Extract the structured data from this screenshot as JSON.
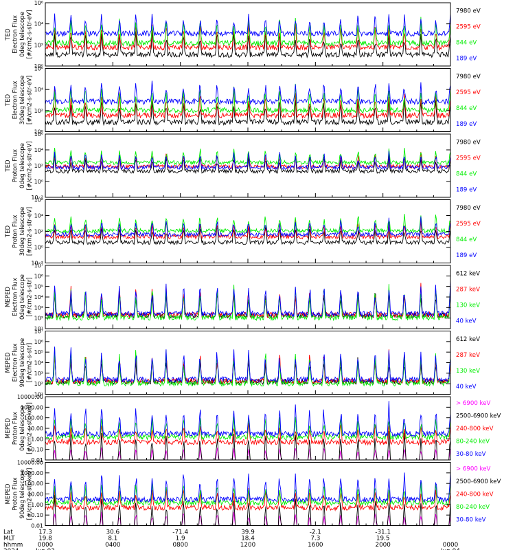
{
  "colors": {
    "black": "#000000",
    "blue": "#0000ff",
    "green": "#00ee00",
    "red": "#ff0000",
    "magenta": "#ff00ff"
  },
  "chart_data": [
    {
      "type": "line",
      "ylabel": [
        "TED",
        "Electron Flux",
        "0deg telescope",
        "[#/cm2-s-str-eV]"
      ],
      "scale": "log",
      "ylim": [
        1,
        1000000
      ],
      "yticks": [
        {
          "v": 1,
          "t": "10⁰"
        },
        {
          "v": 100,
          "t": "10²"
        },
        {
          "v": 10000,
          "t": "10⁴"
        },
        {
          "v": 1000000,
          "t": "10⁶"
        }
      ],
      "series": [
        {
          "name": "7980 eV",
          "color": "black",
          "base": 12,
          "peak": 4000
        },
        {
          "name": "2595 eV",
          "color": "red",
          "base": 60,
          "peak": 20000
        },
        {
          "name": "844 eV",
          "color": "green",
          "base": 150,
          "peak": 50000
        },
        {
          "name": "189 eV",
          "color": "blue",
          "base": 1200,
          "peak": 120000
        }
      ]
    },
    {
      "type": "line",
      "ylabel": [
        "TED",
        "Electron Flux",
        "30deg telescope",
        "[#/cm2-s-str-eV]"
      ],
      "scale": "log",
      "ylim": [
        1,
        1000000
      ],
      "yticks": [
        {
          "v": 1,
          "t": "10⁰"
        },
        {
          "v": 100,
          "t": "10²"
        },
        {
          "v": 10000,
          "t": "10⁴"
        },
        {
          "v": 1000000,
          "t": "10⁶"
        }
      ],
      "series": [
        {
          "name": "7980 eV",
          "color": "black",
          "base": 8,
          "peak": 3000
        },
        {
          "name": "2595 eV",
          "color": "red",
          "base": 35,
          "peak": 15000
        },
        {
          "name": "844 eV",
          "color": "green",
          "base": 110,
          "peak": 40000
        },
        {
          "name": "189 eV",
          "color": "blue",
          "base": 700,
          "peak": 100000
        }
      ]
    },
    {
      "type": "line",
      "ylabel": [
        "TED",
        "Proton Flux",
        "0deg telescope",
        "[#/cm2-s-str-eV]"
      ],
      "scale": "log",
      "ylim": [
        0.01,
        1000000
      ],
      "yticks": [
        {
          "v": 0.01,
          "t": "10⁻²"
        },
        {
          "v": 1,
          "t": "10⁰"
        },
        {
          "v": 100,
          "t": "10²"
        },
        {
          "v": 10000,
          "t": "10⁴"
        },
        {
          "v": 1000000,
          "t": "10⁶"
        }
      ],
      "series": [
        {
          "name": "7980 eV",
          "color": "black",
          "base": 20,
          "peak": 3000
        },
        {
          "name": "2595 eV",
          "color": "red",
          "base": 80,
          "peak": 5000
        },
        {
          "name": "844 eV",
          "color": "green",
          "base": 250,
          "peak": 20000
        },
        {
          "name": "189 eV",
          "color": "blue",
          "base": 60,
          "peak": 10000
        }
      ]
    },
    {
      "type": "line",
      "ylabel": [
        "TED",
        "Proton Flux",
        "30deg telescope",
        "[#/cm2-s-str-eV]"
      ],
      "scale": "log",
      "ylim": [
        0.01,
        1000000
      ],
      "yticks": [
        {
          "v": 0.01,
          "t": "10⁻²"
        },
        {
          "v": 1,
          "t": "10⁰"
        },
        {
          "v": 100,
          "t": "10²"
        },
        {
          "v": 10000,
          "t": "10⁴"
        },
        {
          "v": 1000000,
          "t": "10⁶"
        }
      ],
      "series": [
        {
          "name": "7980 eV",
          "color": "black",
          "base": 4,
          "peak": 1000
        },
        {
          "name": "2595 eV",
          "color": "red",
          "base": 20,
          "peak": 4000
        },
        {
          "name": "844 eV",
          "color": "green",
          "base": 120,
          "peak": 20000
        },
        {
          "name": "189 eV",
          "color": "blue",
          "base": 40,
          "peak": 8000
        }
      ]
    },
    {
      "type": "line",
      "ylabel": [
        "MEPED",
        "Electron Flux",
        "0deg telescope",
        "[#/cm2-s-str]"
      ],
      "scale": "log",
      "ylim": [
        10,
        10000000
      ],
      "yticks": [
        {
          "v": 10,
          "t": "10¹"
        },
        {
          "v": 100,
          "t": "10²"
        },
        {
          "v": 1000,
          "t": "10³"
        },
        {
          "v": 10000,
          "t": "10⁴"
        },
        {
          "v": 100000,
          "t": "10⁵"
        },
        {
          "v": 1000000,
          "t": "10⁶"
        },
        {
          "v": 10000000,
          "t": "10⁷"
        }
      ],
      "series": [
        {
          "name": "612 keV",
          "color": "black",
          "base": 180,
          "peak": 100000
        },
        {
          "name": "287 keV",
          "color": "red",
          "base": 200,
          "peak": 200000
        },
        {
          "name": "130 keV",
          "color": "green",
          "base": 110,
          "peak": 300000
        },
        {
          "name": "40 keV",
          "color": "blue",
          "base": 260,
          "peak": 800000
        }
      ]
    },
    {
      "type": "line",
      "ylabel": [
        "MEPED",
        "Electron Flux",
        "90deg telescope",
        "[#/cm2-s-str]"
      ],
      "scale": "log",
      "ylim": [
        10,
        10000000
      ],
      "yticks": [
        {
          "v": 10,
          "t": "10¹"
        },
        {
          "v": 100,
          "t": "10²"
        },
        {
          "v": 1000,
          "t": "10³"
        },
        {
          "v": 10000,
          "t": "10⁴"
        },
        {
          "v": 100000,
          "t": "10⁵"
        },
        {
          "v": 1000000,
          "t": "10⁶"
        },
        {
          "v": 10000000,
          "t": "10⁷"
        }
      ],
      "series": [
        {
          "name": "612 keV",
          "color": "black",
          "base": 150,
          "peak": 100000
        },
        {
          "name": "287 keV",
          "color": "red",
          "base": 180,
          "peak": 200000
        },
        {
          "name": "130 keV",
          "color": "green",
          "base": 110,
          "peak": 300000
        },
        {
          "name": "40 keV",
          "color": "blue",
          "base": 250,
          "peak": 700000
        }
      ]
    },
    {
      "type": "line",
      "ylabel": [
        "MEPED",
        "Proton Flux",
        "0deg telescope",
        "[#/cm2-s-str-keV]"
      ],
      "scale": "log",
      "ylim": [
        0.01,
        10000
      ],
      "yticks": [
        {
          "v": 0.01,
          "t": "0.01"
        },
        {
          "v": 0.1,
          "t": "0.10"
        },
        {
          "v": 1,
          "t": "1.00"
        },
        {
          "v": 10,
          "t": "10.00"
        },
        {
          "v": 100,
          "t": "100.00"
        },
        {
          "v": 1000,
          "t": "1000.00"
        },
        {
          "v": 10000,
          "t": "10000.00"
        }
      ],
      "series": [
        {
          "name": "> 6900 keV",
          "color": "magenta",
          "base": 0,
          "peak": 0.2
        },
        {
          "name": "2500-6900 keV",
          "color": "black",
          "base": 0,
          "peak": 10
        },
        {
          "name": "240-800 keV",
          "color": "red",
          "base": 0.5,
          "peak": 60
        },
        {
          "name": "80-240 keV",
          "color": "green",
          "base": 1.5,
          "peak": 200
        },
        {
          "name": "30-80 keV",
          "color": "blue",
          "base": 3,
          "peak": 3000
        }
      ]
    },
    {
      "type": "line",
      "ylabel": [
        "MEPED",
        "Proton Flux",
        "90deg telescope",
        "[#/cm2-s-str-keV]"
      ],
      "scale": "log",
      "ylim": [
        0.01,
        10000
      ],
      "yticks": [
        {
          "v": 0.01,
          "t": "0.01"
        },
        {
          "v": 0.1,
          "t": "0.10"
        },
        {
          "v": 1,
          "t": "1.00"
        },
        {
          "v": 10,
          "t": "10.00"
        },
        {
          "v": 100,
          "t": "100.00"
        },
        {
          "v": 1000,
          "t": "1000.00"
        },
        {
          "v": 10000,
          "t": "10000.00"
        }
      ],
      "series": [
        {
          "name": "> 6900 keV",
          "color": "magenta",
          "base": 0,
          "peak": 0.2
        },
        {
          "name": "2500-6900 keV",
          "color": "black",
          "base": 0,
          "peak": 10
        },
        {
          "name": "240-800 keV",
          "color": "red",
          "base": 0.5,
          "peak": 60
        },
        {
          "name": "80-240 keV",
          "color": "green",
          "base": 1.5,
          "peak": 200
        },
        {
          "name": "30-80 keV",
          "color": "blue",
          "base": 3,
          "peak": 3000
        }
      ]
    }
  ],
  "x_axis": {
    "row_labels": [
      "Lat",
      "MLT",
      "hhmm",
      "2024"
    ],
    "ticks": [
      {
        "hour": 0,
        "values": [
          "17.3",
          "19.8",
          "0000",
          "Jun 03"
        ]
      },
      {
        "hour": 4,
        "values": [
          "30.6",
          "8.1",
          "0400",
          ""
        ]
      },
      {
        "hour": 8,
        "values": [
          "-71.4",
          "1.9",
          "0800",
          ""
        ]
      },
      {
        "hour": 12,
        "values": [
          "39.9",
          "18.4",
          "1200",
          ""
        ]
      },
      {
        "hour": 16,
        "values": [
          "-2.1",
          "7.3",
          "1600",
          ""
        ]
      },
      {
        "hour": 20,
        "values": [
          "-31.1",
          "19.5",
          "2000",
          ""
        ]
      },
      {
        "hour": 24,
        "values": [
          "",
          "",
          "0000",
          "Jun 04"
        ]
      }
    ],
    "range_hours": [
      0,
      24
    ]
  }
}
